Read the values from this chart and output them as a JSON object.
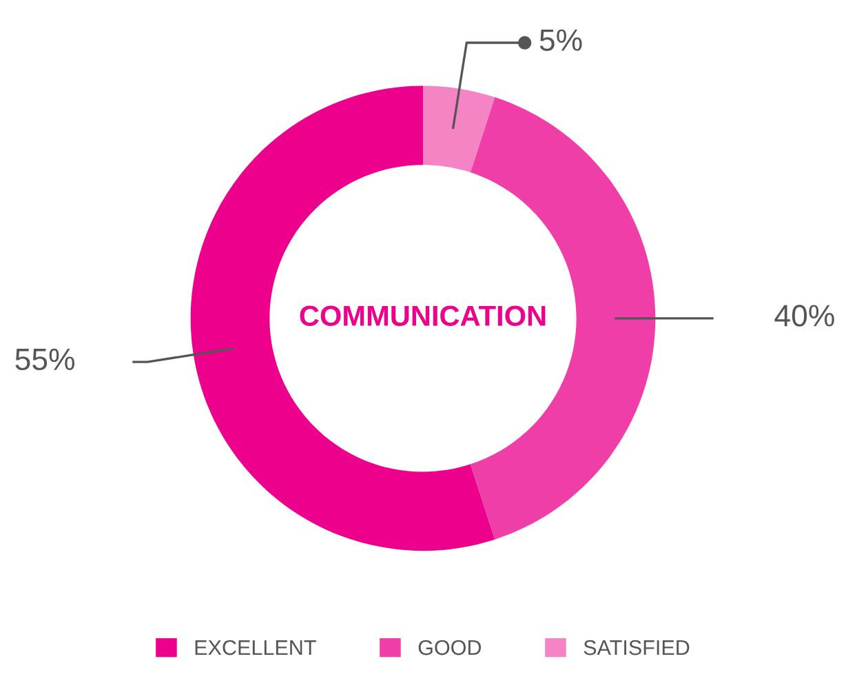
{
  "chart_data": {
    "type": "donut",
    "title": "COMMUNICATION",
    "categories": [
      "EXCELLENT",
      "GOOD",
      "SATISFIED"
    ],
    "values": [
      55,
      40,
      5
    ],
    "colors": [
      "#ec008c",
      "#f03ea8",
      "#f484c4"
    ],
    "value_labels": [
      "55%",
      "40%",
      "5%"
    ],
    "legend": "bottom"
  }
}
